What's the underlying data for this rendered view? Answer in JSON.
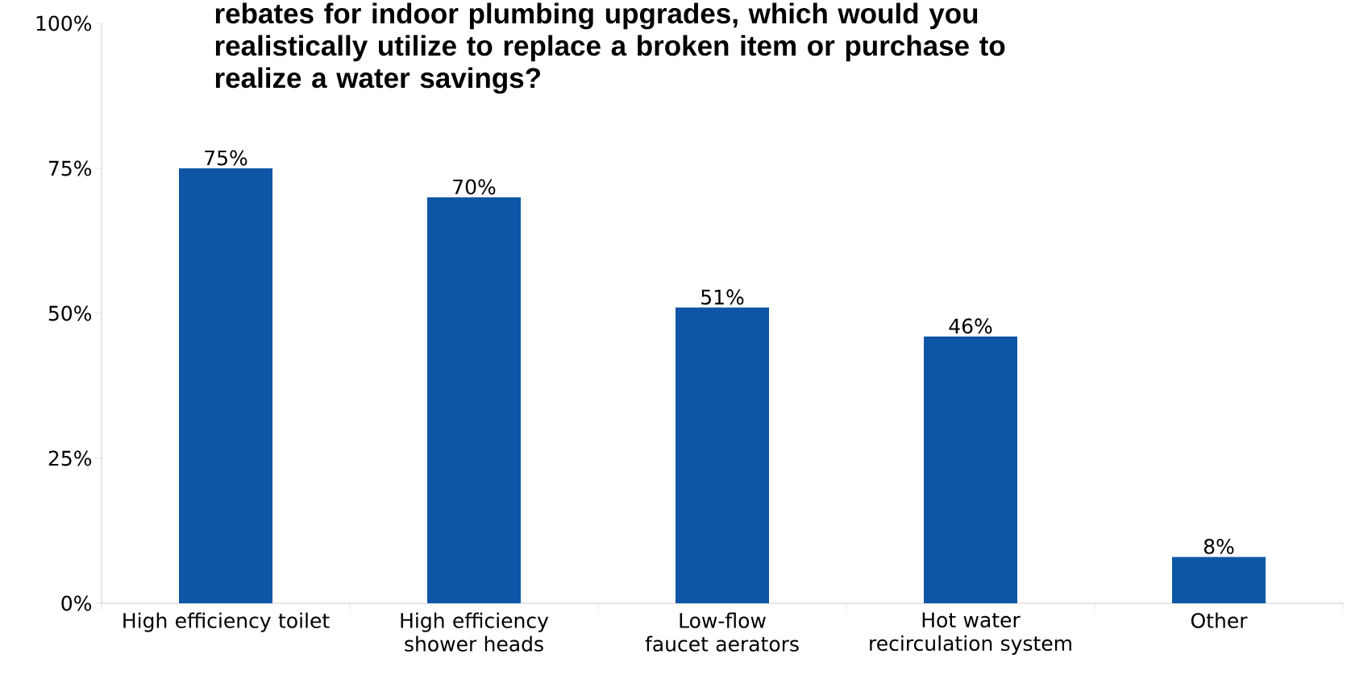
{
  "chart_data": {
    "type": "bar",
    "title": "rebates for indoor plumbing upgrades, which would you realistically utilize to replace a broken item or purchase to realize a water savings?",
    "categories": [
      "High efficiency toilet",
      "High efficiency shower heads",
      "Low-flow faucet aerators",
      "Hot water recirculation system",
      "Other"
    ],
    "values": [
      75,
      70,
      51,
      46,
      8
    ],
    "value_labels": [
      "75%",
      "70%",
      "51%",
      "46%",
      "8%"
    ],
    "color": "#0e56a5",
    "ylim": [
      0,
      100
    ],
    "yticks": [
      {
        "value": 0,
        "label": "0%"
      },
      {
        "value": 25,
        "label": "25%"
      },
      {
        "value": 50,
        "label": "50%"
      },
      {
        "value": 75,
        "label": "75%"
      },
      {
        "value": 100,
        "label": "100%"
      }
    ],
    "grid": false
  }
}
